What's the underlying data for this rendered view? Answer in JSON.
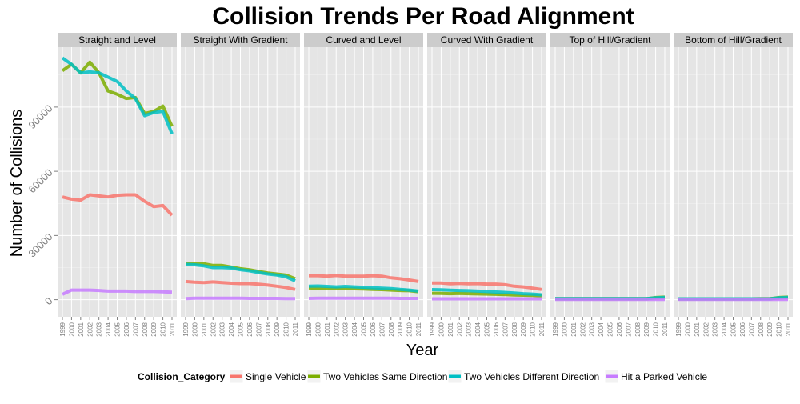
{
  "chart_data": {
    "type": "line",
    "title": "Collision Trends Per Road Alignment",
    "xlabel": "Year",
    "ylabel": "Number of Collisions",
    "x": [
      1999,
      2000,
      2001,
      2002,
      2003,
      2004,
      2005,
      2006,
      2007,
      2008,
      2009,
      2010,
      2011
    ],
    "x_tick_labels": [
      "1999",
      "2000",
      "2001",
      "2002",
      "2003",
      "2004",
      "2005",
      "2006",
      "2007",
      "2008",
      "2009",
      "2010",
      "2011"
    ],
    "y_ticks": [
      0,
      30000,
      60000,
      90000
    ],
    "y_tick_labels": [
      "0",
      "30000",
      "60000",
      "90000"
    ],
    "ylim": [
      -8000,
      118000
    ],
    "grid": true,
    "legend": {
      "title": "Collision_Category",
      "placement": "bottom"
    },
    "series_meta": [
      {
        "name": "Single Vehicle",
        "color": "#F8766D"
      },
      {
        "name": "Two Vehicles Same Direction",
        "color": "#7CAE00"
      },
      {
        "name": "Two Vehicles Different Direction",
        "color": "#00BFC4"
      },
      {
        "name": "Hit a Parked Vehicle",
        "color": "#C77CFF"
      }
    ],
    "facets": [
      {
        "label": "Straight and Level",
        "series": [
          {
            "name": "Single Vehicle",
            "values": [
              48000,
              47000,
              46500,
              49000,
              48500,
              48000,
              48800,
              49000,
              49000,
              46000,
              43500,
              44000,
              39500
            ]
          },
          {
            "name": "Two Vehicles Same Direction",
            "values": [
              107000,
              110000,
              106000,
              111000,
              106000,
              97500,
              96000,
              94000,
              94500,
              87000,
              88000,
              90500,
              81000
            ]
          },
          {
            "name": "Two Vehicles Different Direction",
            "values": [
              113000,
              110000,
              106000,
              106500,
              106000,
              104000,
              102000,
              97500,
              94000,
              86000,
              87500,
              88000,
              77500
            ]
          },
          {
            "name": "Hit a Parked Vehicle",
            "values": [
              2500,
              4500,
              4500,
              4500,
              4300,
              4000,
              4000,
              4000,
              3800,
              3800,
              3800,
              3700,
              3500
            ]
          }
        ]
      },
      {
        "label": "Straight With Gradient",
        "series": [
          {
            "name": "Single Vehicle",
            "values": [
              8500,
              8200,
              8000,
              8300,
              8000,
              7700,
              7500,
              7500,
              7200,
              6800,
              6300,
              5700,
              4800
            ]
          },
          {
            "name": "Two Vehicles Same Direction",
            "values": [
              17000,
              17000,
              16800,
              16000,
              16000,
              15200,
              14500,
              14000,
              13200,
              12500,
              12000,
              11500,
              9800
            ]
          },
          {
            "name": "Two Vehicles Different Direction",
            "values": [
              16500,
              16300,
              15800,
              15000,
              15000,
              14800,
              14000,
              13500,
              12700,
              12000,
              11500,
              10700,
              8800
            ]
          },
          {
            "name": "Hit a Parked Vehicle",
            "values": [
              500,
              700,
              700,
              700,
              700,
              700,
              700,
              600,
              600,
              600,
              600,
              500,
              500
            ]
          }
        ]
      },
      {
        "label": "Curved and Level",
        "series": [
          {
            "name": "Single Vehicle",
            "values": [
              11200,
              11200,
              11000,
              11300,
              11000,
              11000,
              11000,
              11200,
              11000,
              10200,
              9800,
              9200,
              8500
            ]
          },
          {
            "name": "Two Vehicles Same Direction",
            "values": [
              5500,
              5400,
              5200,
              5100,
              5200,
              5100,
              5000,
              4800,
              4700,
              4500,
              4300,
              4200,
              3700
            ]
          },
          {
            "name": "Two Vehicles Different Direction",
            "values": [
              6300,
              6400,
              6200,
              6000,
              6200,
              6000,
              5800,
              5600,
              5400,
              5200,
              4800,
              4500,
              4000
            ]
          },
          {
            "name": "Hit a Parked Vehicle",
            "values": [
              600,
              700,
              700,
              700,
              700,
              700,
              700,
              700,
              700,
              700,
              600,
              600,
              600
            ]
          }
        ]
      },
      {
        "label": "Curved With Gradient",
        "series": [
          {
            "name": "Single Vehicle",
            "values": [
              7800,
              7800,
              7400,
              7600,
              7400,
              7500,
              7300,
              7300,
              7000,
              6300,
              6000,
              5400,
              4800
            ]
          },
          {
            "name": "Two Vehicles Same Direction",
            "values": [
              3000,
              2900,
              2800,
              2900,
              2800,
              2700,
              2600,
              2500,
              2400,
              2200,
              2100,
              2000,
              1800
            ]
          },
          {
            "name": "Two Vehicles Different Direction",
            "values": [
              4700,
              4600,
              4400,
              4300,
              4200,
              4000,
              3800,
              3600,
              3400,
              3100,
              2800,
              2600,
              2300
            ]
          },
          {
            "name": "Hit a Parked Vehicle",
            "values": [
              400,
              400,
              400,
              400,
              400,
              400,
              400,
              400,
              400,
              400,
              400,
              400,
              400
            ]
          }
        ]
      },
      {
        "label": "Top of Hill/Gradient",
        "series": [
          {
            "name": "Single Vehicle",
            "values": [
              500,
              500,
              500,
              500,
              500,
              500,
              500,
              500,
              500,
              500,
              500,
              700,
              800
            ]
          },
          {
            "name": "Two Vehicles Same Direction",
            "values": [
              400,
              400,
              400,
              400,
              400,
              400,
              400,
              400,
              400,
              400,
              400,
              1000,
              1200
            ]
          },
          {
            "name": "Two Vehicles Different Direction",
            "values": [
              500,
              500,
              500,
              500,
              500,
              500,
              500,
              500,
              500,
              500,
              500,
              900,
              1100
            ]
          },
          {
            "name": "Hit a Parked Vehicle",
            "values": [
              100,
              100,
              100,
              100,
              100,
              100,
              100,
              100,
              100,
              100,
              100,
              100,
              100
            ]
          }
        ]
      },
      {
        "label": "Bottom of Hill/Gradient",
        "series": [
          {
            "name": "Single Vehicle",
            "values": [
              400,
              400,
              400,
              400,
              400,
              400,
              400,
              400,
              400,
              500,
              500,
              700,
              800
            ]
          },
          {
            "name": "Two Vehicles Same Direction",
            "values": [
              300,
              300,
              300,
              300,
              300,
              300,
              300,
              300,
              300,
              400,
              400,
              1000,
              1200
            ]
          },
          {
            "name": "Two Vehicles Different Direction",
            "values": [
              400,
              400,
              400,
              400,
              400,
              400,
              400,
              400,
              400,
              400,
              400,
              900,
              1100
            ]
          },
          {
            "name": "Hit a Parked Vehicle",
            "values": [
              100,
              100,
              100,
              100,
              100,
              100,
              100,
              100,
              100,
              100,
              100,
              100,
              100
            ]
          }
        ]
      }
    ]
  }
}
